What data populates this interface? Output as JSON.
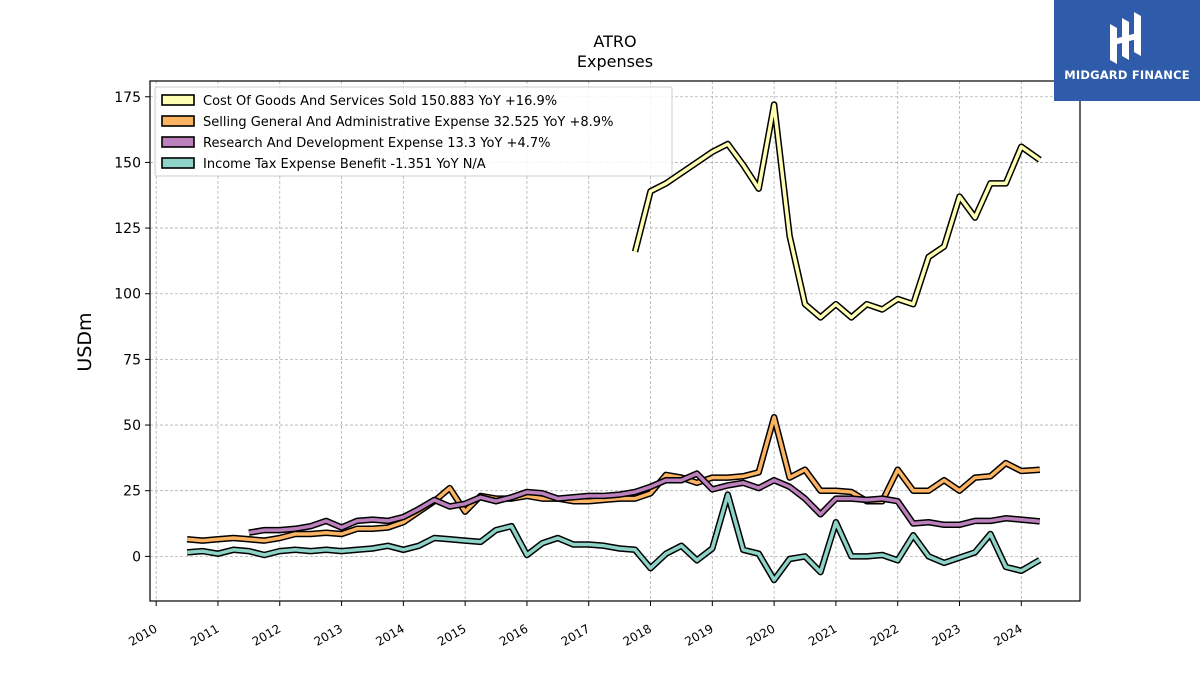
{
  "brand": {
    "logo_text": "MIDGARD FINANCE",
    "background_color": "#2f5bab"
  },
  "chart_data": {
    "type": "line",
    "title": "ATRO",
    "subtitle": "Expenses",
    "ylabel": "USDm",
    "xlabel": "",
    "ylim": [
      -17,
      181
    ],
    "xlim": [
      2009.9,
      2024.95
    ],
    "grid": true,
    "legend_position": "top-left",
    "y_ticks": [
      0,
      25,
      50,
      75,
      100,
      125,
      150,
      175
    ],
    "x_ticks": [
      2010,
      2011,
      2012,
      2013,
      2014,
      2015,
      2016,
      2017,
      2018,
      2019,
      2020,
      2021,
      2022,
      2023,
      2024
    ],
    "series": [
      {
        "name": "Cost Of Goods And Services Sold",
        "legend_label": "Cost Of Goods And Services Sold  150.883 YoY +16.9%",
        "color": "#ffffb3",
        "points": [
          [
            2017.75,
            116
          ],
          [
            2018.0,
            139
          ],
          [
            2018.25,
            142
          ],
          [
            2018.5,
            146
          ],
          [
            2018.75,
            150
          ],
          [
            2019.0,
            154
          ],
          [
            2019.25,
            157
          ],
          [
            2019.5,
            149
          ],
          [
            2019.75,
            140
          ],
          [
            2020.0,
            172
          ],
          [
            2020.25,
            122
          ],
          [
            2020.5,
            96
          ],
          [
            2020.75,
            91
          ],
          [
            2021.0,
            96
          ],
          [
            2021.25,
            91
          ],
          [
            2021.5,
            96
          ],
          [
            2021.75,
            94
          ],
          [
            2022.0,
            98
          ],
          [
            2022.25,
            96
          ],
          [
            2022.5,
            114
          ],
          [
            2022.75,
            118
          ],
          [
            2023.0,
            137
          ],
          [
            2023.25,
            129
          ],
          [
            2023.5,
            142
          ],
          [
            2023.75,
            142
          ],
          [
            2024.0,
            156
          ],
          [
            2024.3,
            151
          ]
        ]
      },
      {
        "name": "Selling General And Administrative Expense",
        "legend_label": "Selling General And Administrative Expense  32.525 YoY +8.9%",
        "color": "#fdb462",
        "points": [
          [
            2010.5,
            6.5
          ],
          [
            2010.75,
            6
          ],
          [
            2011.0,
            6.5
          ],
          [
            2011.25,
            7
          ],
          [
            2011.5,
            6.5
          ],
          [
            2011.75,
            6
          ],
          [
            2012.0,
            7
          ],
          [
            2012.25,
            8.5
          ],
          [
            2012.5,
            8.5
          ],
          [
            2012.75,
            9
          ],
          [
            2013.0,
            8.5
          ],
          [
            2013.25,
            10.5
          ],
          [
            2013.5,
            10.5
          ],
          [
            2013.75,
            11
          ],
          [
            2014.0,
            13
          ],
          [
            2014.25,
            17
          ],
          [
            2014.5,
            21
          ],
          [
            2014.75,
            26
          ],
          [
            2015.0,
            17
          ],
          [
            2015.25,
            23
          ],
          [
            2015.5,
            22
          ],
          [
            2015.75,
            22
          ],
          [
            2016.0,
            23
          ],
          [
            2016.25,
            22
          ],
          [
            2016.5,
            22
          ],
          [
            2016.75,
            21
          ],
          [
            2017.0,
            21
          ],
          [
            2017.25,
            21.5
          ],
          [
            2017.5,
            22
          ],
          [
            2017.75,
            22
          ],
          [
            2018.0,
            24
          ],
          [
            2018.25,
            31
          ],
          [
            2018.5,
            30
          ],
          [
            2018.75,
            28
          ],
          [
            2019.0,
            30
          ],
          [
            2019.25,
            30
          ],
          [
            2019.5,
            30.5
          ],
          [
            2019.75,
            32
          ],
          [
            2020.0,
            53
          ],
          [
            2020.25,
            30
          ],
          [
            2020.5,
            33
          ],
          [
            2020.75,
            25
          ],
          [
            2021.0,
            25
          ],
          [
            2021.25,
            24.5
          ],
          [
            2021.5,
            21
          ],
          [
            2021.75,
            21
          ],
          [
            2022.0,
            33
          ],
          [
            2022.25,
            25
          ],
          [
            2022.5,
            25
          ],
          [
            2022.75,
            29
          ],
          [
            2023.0,
            25
          ],
          [
            2023.25,
            30
          ],
          [
            2023.5,
            30.5
          ],
          [
            2023.75,
            35.5
          ],
          [
            2024.0,
            32.5
          ],
          [
            2024.3,
            33
          ]
        ]
      },
      {
        "name": "Research And Development Expense",
        "legend_label": "Research And Development Expense  13.3 YoY +4.7%",
        "color": "#bc80bd",
        "points": [
          [
            2011.5,
            9
          ],
          [
            2011.75,
            10
          ],
          [
            2012.0,
            10
          ],
          [
            2012.25,
            10.5
          ],
          [
            2012.5,
            11.5
          ],
          [
            2012.75,
            13.5
          ],
          [
            2013.0,
            11
          ],
          [
            2013.25,
            13.5
          ],
          [
            2013.5,
            14
          ],
          [
            2013.75,
            13.5
          ],
          [
            2014.0,
            15
          ],
          [
            2014.25,
            18
          ],
          [
            2014.5,
            21.5
          ],
          [
            2014.75,
            19
          ],
          [
            2015.0,
            20
          ],
          [
            2015.25,
            22.5
          ],
          [
            2015.5,
            21
          ],
          [
            2015.75,
            22.5
          ],
          [
            2016.0,
            24.5
          ],
          [
            2016.25,
            24
          ],
          [
            2016.5,
            22
          ],
          [
            2016.75,
            22.5
          ],
          [
            2017.0,
            23
          ],
          [
            2017.25,
            23
          ],
          [
            2017.5,
            23.5
          ],
          [
            2017.75,
            24.5
          ],
          [
            2018.0,
            26.5
          ],
          [
            2018.25,
            29
          ],
          [
            2018.5,
            29
          ],
          [
            2018.75,
            31.5
          ],
          [
            2019.0,
            25.5
          ],
          [
            2019.25,
            27
          ],
          [
            2019.5,
            28
          ],
          [
            2019.75,
            26
          ],
          [
            2020.0,
            29
          ],
          [
            2020.25,
            26.5
          ],
          [
            2020.5,
            22
          ],
          [
            2020.75,
            16
          ],
          [
            2021.0,
            22
          ],
          [
            2021.25,
            22
          ],
          [
            2021.5,
            21.5
          ],
          [
            2021.75,
            22
          ],
          [
            2022.0,
            21
          ],
          [
            2022.25,
            12.5
          ],
          [
            2022.5,
            13
          ],
          [
            2022.75,
            12
          ],
          [
            2023.0,
            12
          ],
          [
            2023.25,
            13.5
          ],
          [
            2023.5,
            13.5
          ],
          [
            2023.75,
            14.5
          ],
          [
            2024.0,
            14
          ],
          [
            2024.3,
            13.3
          ]
        ]
      },
      {
        "name": "Income Tax Expense Benefit",
        "legend_label": "Income Tax Expense Benefit  -1.351 YoY N/A",
        "color": "#8dd3c7",
        "points": [
          [
            2010.5,
            1.5
          ],
          [
            2010.75,
            2
          ],
          [
            2011.0,
            1
          ],
          [
            2011.25,
            2.5
          ],
          [
            2011.5,
            2
          ],
          [
            2011.75,
            0.5
          ],
          [
            2012.0,
            2
          ],
          [
            2012.25,
            2.5
          ],
          [
            2012.5,
            2
          ],
          [
            2012.75,
            2.5
          ],
          [
            2013.0,
            2
          ],
          [
            2013.25,
            2.5
          ],
          [
            2013.5,
            3
          ],
          [
            2013.75,
            4
          ],
          [
            2014.0,
            2.5
          ],
          [
            2014.25,
            4
          ],
          [
            2014.5,
            7
          ],
          [
            2014.75,
            6.5
          ],
          [
            2015.0,
            6
          ],
          [
            2015.25,
            5.5
          ],
          [
            2015.5,
            10
          ],
          [
            2015.75,
            11.5
          ],
          [
            2016.0,
            0.5
          ],
          [
            2016.25,
            5
          ],
          [
            2016.5,
            7
          ],
          [
            2016.75,
            4.5
          ],
          [
            2017.0,
            4.5
          ],
          [
            2017.25,
            4
          ],
          [
            2017.5,
            3
          ],
          [
            2017.75,
            2.5
          ],
          [
            2018.0,
            -4.5
          ],
          [
            2018.25,
            1
          ],
          [
            2018.5,
            4
          ],
          [
            2018.75,
            -1.5
          ],
          [
            2019.0,
            3
          ],
          [
            2019.25,
            23.5
          ],
          [
            2019.5,
            2.5
          ],
          [
            2019.75,
            1
          ],
          [
            2020.0,
            -9
          ],
          [
            2020.25,
            -1
          ],
          [
            2020.5,
            0
          ],
          [
            2020.75,
            -6
          ],
          [
            2021.0,
            13
          ],
          [
            2021.25,
            0
          ],
          [
            2021.5,
            0
          ],
          [
            2021.75,
            0.5
          ],
          [
            2022.0,
            -1.5
          ],
          [
            2022.25,
            8
          ],
          [
            2022.5,
            0
          ],
          [
            2022.75,
            -2.5
          ],
          [
            2023.0,
            -0.5
          ],
          [
            2023.25,
            1.5
          ],
          [
            2023.5,
            8.5
          ],
          [
            2023.75,
            -4
          ],
          [
            2024.0,
            -5.5
          ],
          [
            2024.3,
            -1.4
          ]
        ]
      }
    ]
  }
}
